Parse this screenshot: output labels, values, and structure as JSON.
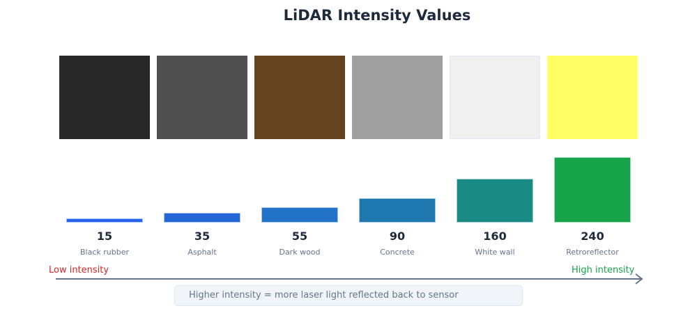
{
  "title": "LiDAR Intensity Values",
  "chart_data": {
    "type": "bar",
    "title": "LiDAR Intensity Values",
    "categories": [
      "Black rubber",
      "Asphalt",
      "Dark wood",
      "Concrete",
      "White wall",
      "Retroreflector"
    ],
    "values": [
      15,
      35,
      55,
      90,
      160,
      240
    ],
    "swatch_colors": [
      "#282828",
      "#505050",
      "#654321",
      "#a0a0a0",
      "#f0f0f0",
      "#ffff66"
    ],
    "bar_colors": [
      "#2563eb",
      "#2366d6",
      "#2272c8",
      "#1f77b0",
      "#1a8a85",
      "#16a34a"
    ]
  },
  "axis": {
    "low_label": "Low intensity",
    "high_label": "High intensity",
    "low_color": "#dc2626",
    "high_color": "#16a34a"
  },
  "note": "Higher intensity = more laser light reflected back to sensor"
}
